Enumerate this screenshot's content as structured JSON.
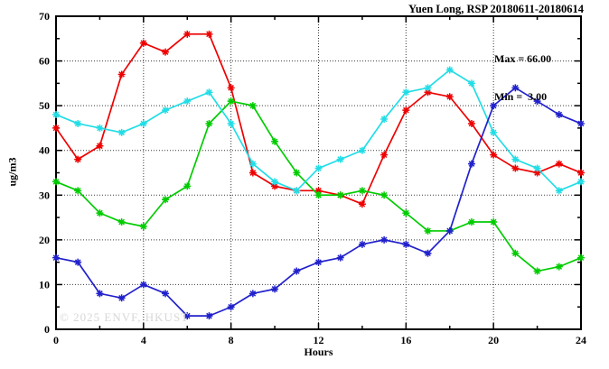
{
  "title": "Yuen Long, RSP 20180611-20180614",
  "watermark": "© 2025 ENVF, HKUST",
  "chart_data": {
    "type": "line",
    "title": "Yuen Long, RSP 20180611-20180614",
    "xlabel": "Hours",
    "ylabel": "ug/m3",
    "xlim": [
      0,
      24
    ],
    "ylim": [
      0,
      70
    ],
    "xticks": [
      0,
      4,
      8,
      12,
      16,
      20,
      24
    ],
    "xminor": [
      2,
      6,
      10,
      14,
      18,
      22
    ],
    "yticks": [
      0,
      10,
      20,
      30,
      40,
      50,
      60,
      70
    ],
    "yminor": [
      5,
      15,
      25,
      35,
      45,
      55,
      65
    ],
    "grid": true,
    "legend": false,
    "annotations": [
      "Max = 66.00",
      "Min =  3.00"
    ],
    "x": [
      0,
      1,
      2,
      3,
      4,
      5,
      6,
      7,
      8,
      9,
      10,
      11,
      12,
      13,
      14,
      15,
      16,
      17,
      18,
      19,
      20,
      21,
      22,
      23,
      24
    ],
    "series": [
      {
        "name": "red-series",
        "color": "#ee0000",
        "values": [
          45,
          38,
          41,
          57,
          64,
          62,
          66,
          66,
          54,
          35,
          32,
          31,
          31,
          30,
          28,
          39,
          49,
          53,
          52,
          46,
          39,
          36,
          35,
          37,
          35
        ]
      },
      {
        "name": "green-series",
        "color": "#00cc00",
        "values": [
          33,
          31,
          26,
          24,
          23,
          29,
          32,
          46,
          51,
          50,
          42,
          35,
          30,
          30,
          31,
          30,
          26,
          22,
          22,
          24,
          24,
          17,
          13,
          14,
          16
        ]
      },
      {
        "name": "cyan-series",
        "color": "#22dde6",
        "values": [
          48,
          46,
          45,
          44,
          46,
          49,
          51,
          53,
          46,
          37,
          33,
          31,
          36,
          38,
          40,
          47,
          53,
          54,
          58,
          55,
          44,
          38,
          36,
          31,
          33
        ]
      },
      {
        "name": "blue-series",
        "color": "#2121cc",
        "values": [
          16,
          15,
          8,
          7,
          10,
          8,
          3,
          3,
          5,
          8,
          9,
          13,
          15,
          16,
          19,
          20,
          19,
          17,
          22,
          37,
          50,
          54,
          51,
          48,
          46
        ]
      }
    ]
  }
}
